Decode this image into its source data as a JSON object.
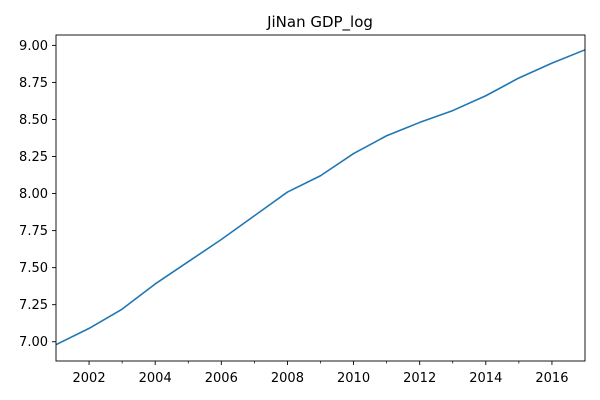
{
  "chart_data": {
    "type": "line",
    "title": "JiNan GDP_log",
    "xlabel": "",
    "ylabel": "",
    "xlim": [
      2001,
      2017
    ],
    "ylim": [
      6.87,
      9.07
    ],
    "grid": false,
    "x_ticks": [
      2002,
      2004,
      2006,
      2008,
      2010,
      2012,
      2014,
      2016
    ],
    "x_tick_labels": [
      "2002",
      "2004",
      "2006",
      "2008",
      "2010",
      "2012",
      "2014",
      "2016"
    ],
    "x_minor_ticks": [
      2003,
      2005,
      2007,
      2009,
      2011,
      2013,
      2015
    ],
    "y_ticks": [
      7.0,
      7.25,
      7.5,
      7.75,
      8.0,
      8.25,
      8.5,
      8.75,
      9.0
    ],
    "y_tick_labels": [
      "7.00",
      "7.25",
      "7.50",
      "7.75",
      "8.00",
      "8.25",
      "8.50",
      "8.75",
      "9.00"
    ],
    "series": [
      {
        "color": "#1f77b4",
        "x": [
          2001,
          2002,
          2003,
          2004,
          2005,
          2006,
          2007,
          2008,
          2009,
          2010,
          2011,
          2012,
          2013,
          2014,
          2015,
          2016,
          2017
        ],
        "values": [
          6.98,
          7.09,
          7.22,
          7.39,
          7.54,
          7.69,
          7.85,
          8.01,
          8.12,
          8.27,
          8.39,
          8.48,
          8.56,
          8.66,
          8.78,
          8.88,
          8.97
        ]
      }
    ]
  }
}
